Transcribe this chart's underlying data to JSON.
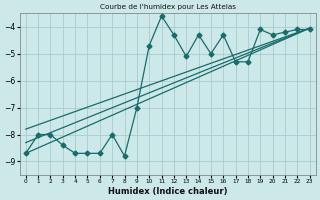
{
  "title": "Courbe de l'humidex pour Les Attelas",
  "xlabel": "Humidex (Indice chaleur)",
  "bg_color": "#cce8e8",
  "grid_color": "#aacccc",
  "line_color": "#1a6b6b",
  "xlim": [
    -0.5,
    23.5
  ],
  "ylim": [
    -9.5,
    -3.5
  ],
  "xticks": [
    0,
    1,
    2,
    3,
    4,
    5,
    6,
    7,
    8,
    9,
    10,
    11,
    12,
    13,
    14,
    15,
    16,
    17,
    18,
    19,
    20,
    21,
    22,
    23
  ],
  "yticks": [
    -9,
    -8,
    -7,
    -6,
    -5,
    -4
  ],
  "line1_x": [
    0,
    1,
    2,
    3,
    4,
    5,
    6,
    7,
    8,
    9,
    10,
    11,
    12,
    13,
    14,
    15,
    16,
    17,
    18,
    19,
    20,
    21,
    22,
    23
  ],
  "line1_y": [
    -8.7,
    -8.0,
    -8.0,
    -8.4,
    -8.7,
    -8.7,
    -8.7,
    -8.0,
    -8.8,
    -7.0,
    -4.7,
    -3.6,
    -4.3,
    -5.1,
    -4.3,
    -5.0,
    -4.3,
    -5.3,
    -5.3,
    -4.1,
    -4.3,
    -4.2,
    -4.1,
    -4.1
  ],
  "line2_x": [
    0,
    23
  ],
  "line2_y": [
    -8.7,
    -4.05
  ],
  "line3_x": [
    0,
    23
  ],
  "line3_y": [
    -8.3,
    -4.05
  ],
  "line4_x": [
    0,
    23
  ],
  "line4_y": [
    -7.8,
    -4.05
  ],
  "markersize": 2.5,
  "linewidth": 0.9
}
